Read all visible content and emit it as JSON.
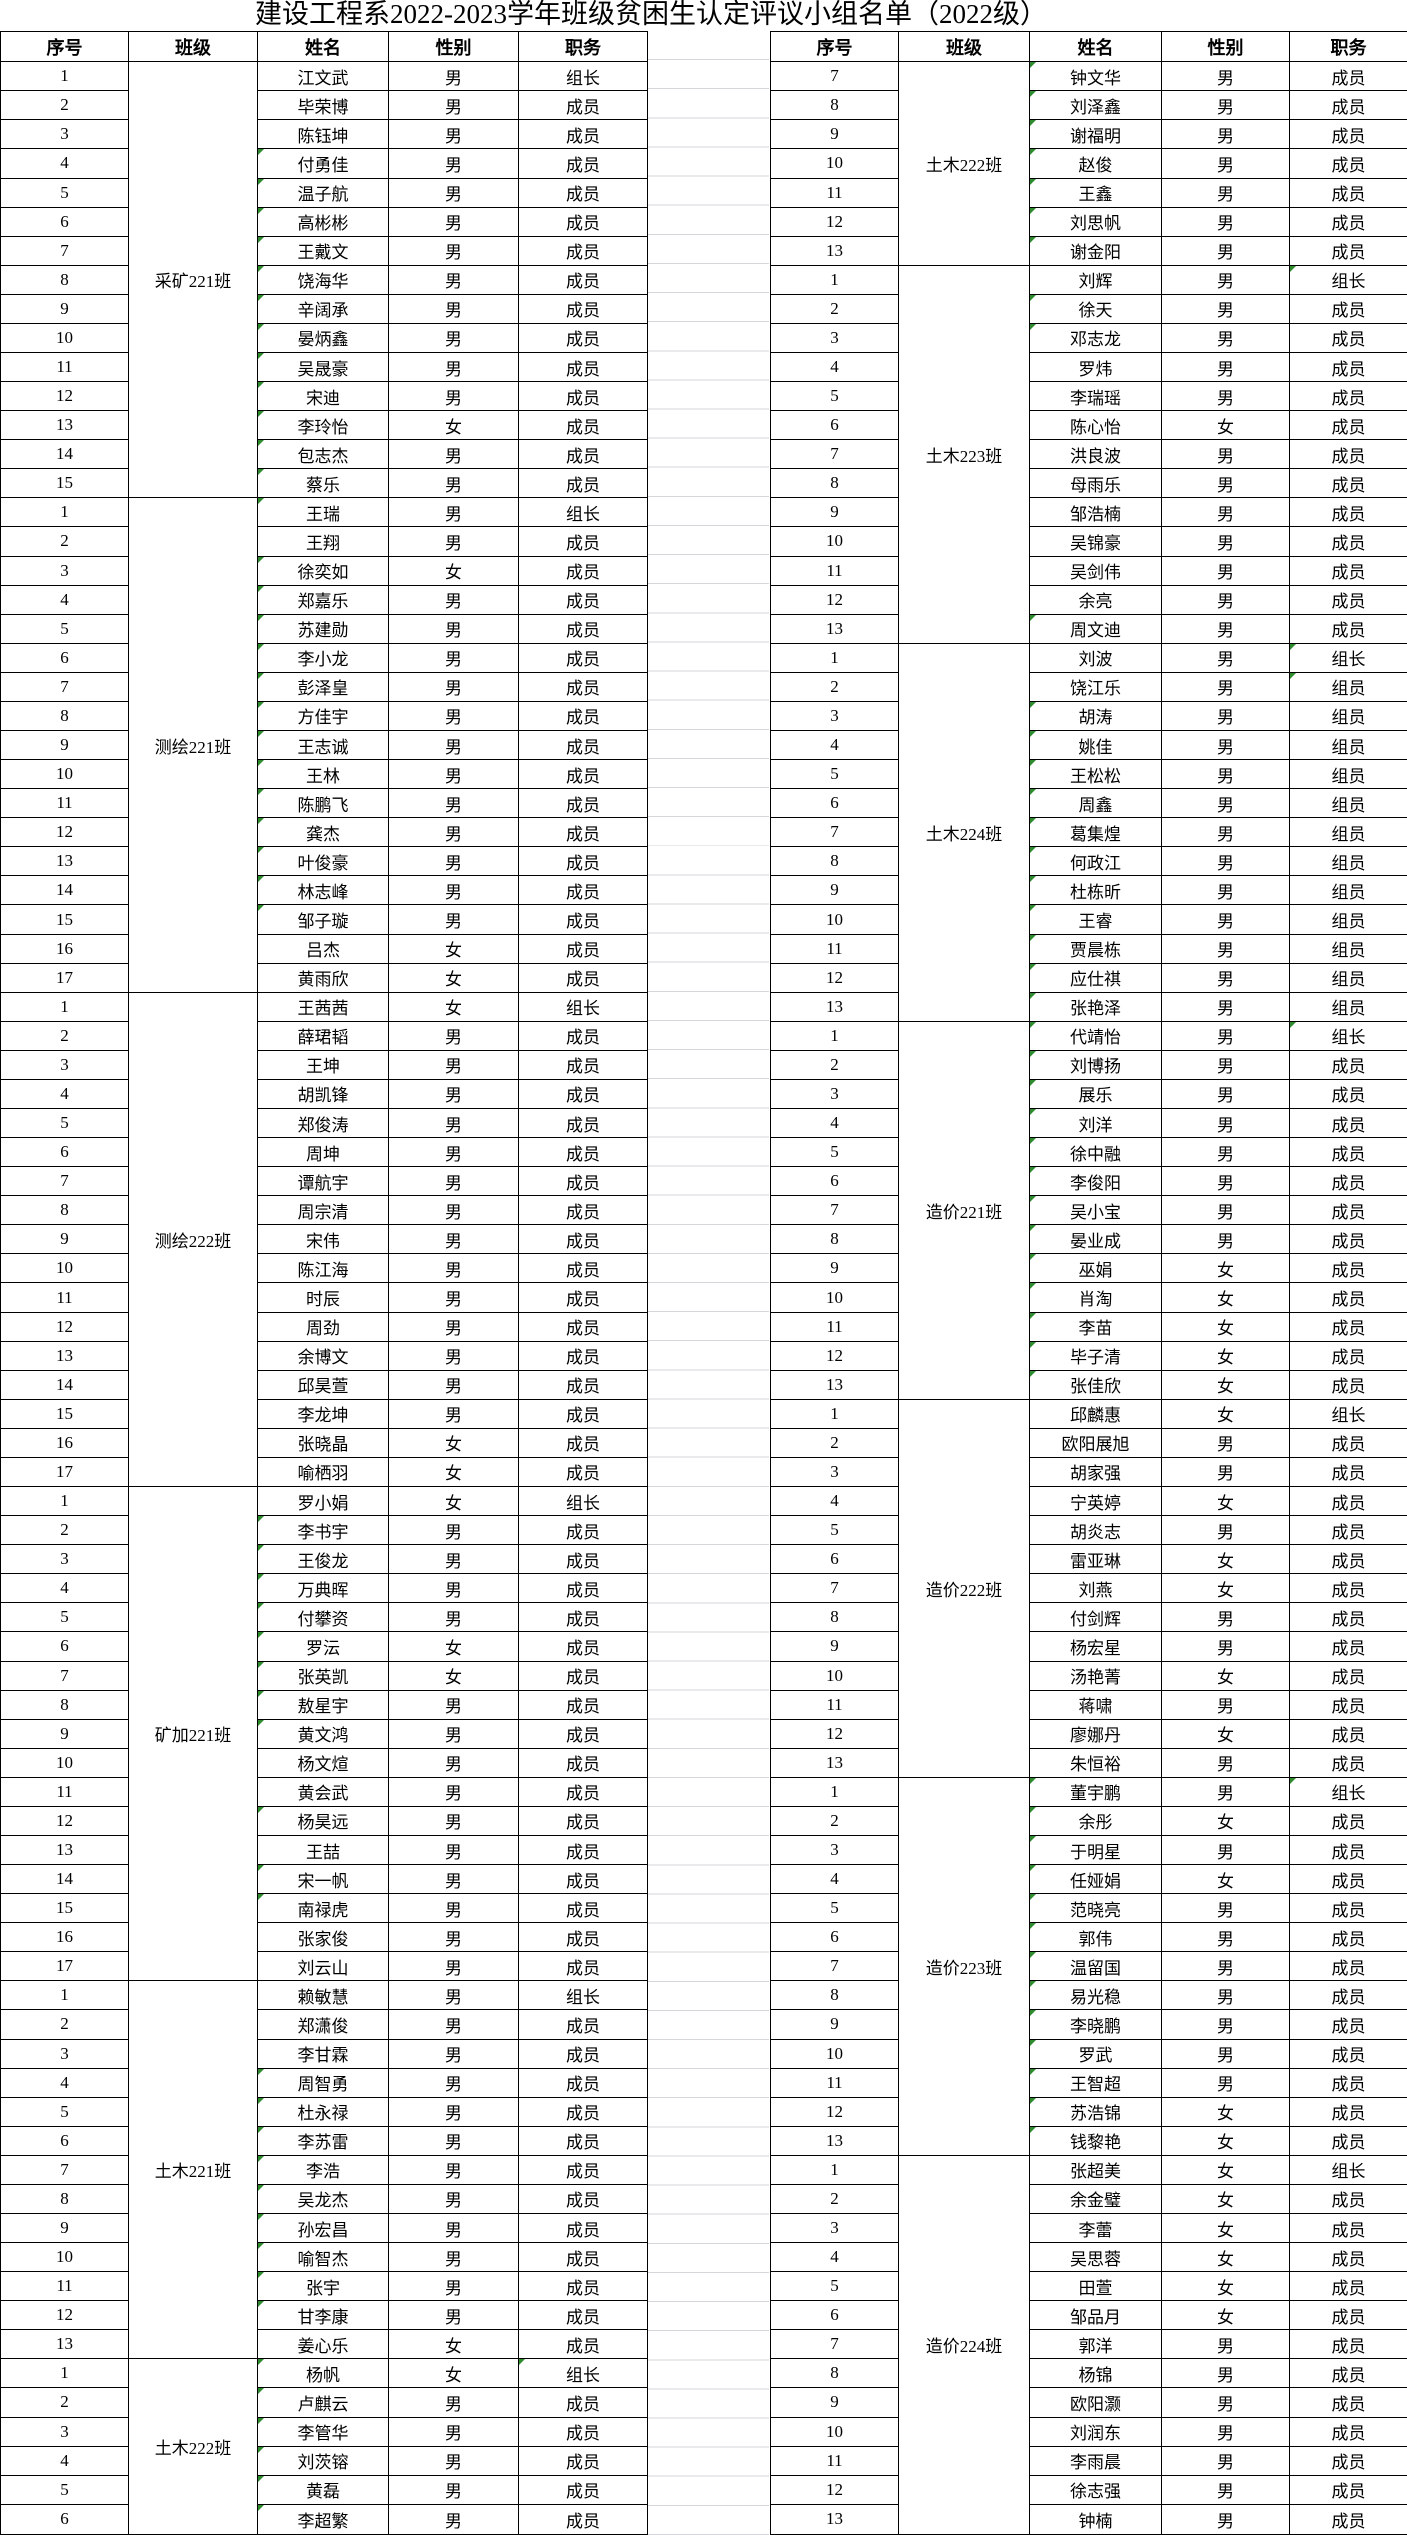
{
  "title": "建设工程系2022-2023学年班级贫困生认定评议小组名单（2022级）",
  "header": [
    "序号",
    "班级",
    "姓名",
    "性别",
    "职务"
  ],
  "colors": {
    "border": "#000000",
    "gridline": "#d5d5da",
    "flag_triangle": "#2e8b2e",
    "text": "#000000",
    "background": "#ffffff"
  },
  "tables": {
    "left": [
      {
        "cls": "采矿221班",
        "rows": [
          [
            1,
            "江文武",
            "男",
            "组长",
            0
          ],
          [
            2,
            "毕荣博",
            "男",
            "成员",
            0
          ],
          [
            3,
            "陈钰坤",
            "男",
            "成员",
            0
          ],
          [
            4,
            "付勇佳",
            "男",
            "成员",
            1
          ],
          [
            5,
            "温子航",
            "男",
            "成员",
            1
          ],
          [
            6,
            "高彬彬",
            "男",
            "成员",
            1
          ],
          [
            7,
            "王戴文",
            "男",
            "成员",
            1
          ],
          [
            8,
            "饶海华",
            "男",
            "成员",
            1
          ],
          [
            9,
            "辛阔承",
            "男",
            "成员",
            1
          ],
          [
            10,
            "晏炳鑫",
            "男",
            "成员",
            1
          ],
          [
            11,
            "吴晟豪",
            "男",
            "成员",
            1
          ],
          [
            12,
            "宋迪",
            "男",
            "成员",
            1
          ],
          [
            13,
            "李玲怡",
            "女",
            "成员",
            1
          ],
          [
            14,
            "包志杰",
            "男",
            "成员",
            1
          ],
          [
            15,
            "蔡乐",
            "男",
            "成员",
            1
          ]
        ]
      },
      {
        "cls": "测绘221班",
        "rows": [
          [
            1,
            "王瑞",
            "男",
            "组长",
            1
          ],
          [
            2,
            "王翔",
            "男",
            "成员",
            0
          ],
          [
            3,
            "徐奕如",
            "女",
            "成员",
            1
          ],
          [
            4,
            "郑嘉乐",
            "男",
            "成员",
            1
          ],
          [
            5,
            "苏建勋",
            "男",
            "成员",
            1
          ],
          [
            6,
            "李小龙",
            "男",
            "成员",
            1
          ],
          [
            7,
            "彭泽皇",
            "男",
            "成员",
            1
          ],
          [
            8,
            "方佳宇",
            "男",
            "成员",
            1
          ],
          [
            9,
            "王志诚",
            "男",
            "成员",
            1
          ],
          [
            10,
            "王林",
            "男",
            "成员",
            1
          ],
          [
            11,
            "陈鹏飞",
            "男",
            "成员",
            1
          ],
          [
            12,
            "龚杰",
            "男",
            "成员",
            1
          ],
          [
            13,
            "叶俊豪",
            "男",
            "成员",
            1
          ],
          [
            14,
            "林志峰",
            "男",
            "成员",
            1
          ],
          [
            15,
            "邹子璇",
            "男",
            "成员",
            1
          ],
          [
            16,
            "吕杰",
            "女",
            "成员",
            0
          ],
          [
            17,
            "黄雨欣",
            "女",
            "成员",
            0
          ]
        ]
      },
      {
        "cls": "测绘222班",
        "rows": [
          [
            1,
            "王茜茜",
            "女",
            "组长",
            0
          ],
          [
            2,
            "薛珺韬",
            "男",
            "成员",
            0
          ],
          [
            3,
            "王坤",
            "男",
            "成员",
            0
          ],
          [
            4,
            "胡凯锋",
            "男",
            "成员",
            0
          ],
          [
            5,
            "郑俊涛",
            "男",
            "成员",
            0
          ],
          [
            6,
            "周坤",
            "男",
            "成员",
            0
          ],
          [
            7,
            "谭航宇",
            "男",
            "成员",
            0
          ],
          [
            8,
            "周宗清",
            "男",
            "成员",
            0
          ],
          [
            9,
            "宋伟",
            "男",
            "成员",
            0
          ],
          [
            10,
            "陈江海",
            "男",
            "成员",
            0
          ],
          [
            11,
            "时辰",
            "男",
            "成员",
            0
          ],
          [
            12,
            "周劲",
            "男",
            "成员",
            0
          ],
          [
            13,
            "余博文",
            "男",
            "成员",
            0
          ],
          [
            14,
            "邱昊萱",
            "男",
            "成员",
            0
          ],
          [
            15,
            "李龙坤",
            "男",
            "成员",
            0
          ],
          [
            16,
            "张晓晶",
            "女",
            "成员",
            0
          ],
          [
            17,
            "喻栖羽",
            "女",
            "成员",
            0
          ]
        ]
      },
      {
        "cls": "矿加221班",
        "rows": [
          [
            1,
            "罗小娟",
            "女",
            "组长",
            0
          ],
          [
            2,
            "李书宇",
            "男",
            "成员",
            1
          ],
          [
            3,
            "王俊龙",
            "男",
            "成员",
            1
          ],
          [
            4,
            "万典晖",
            "男",
            "成员",
            1
          ],
          [
            5,
            "付攀资",
            "男",
            "成员",
            1
          ],
          [
            6,
            "罗沄",
            "女",
            "成员",
            1
          ],
          [
            7,
            "张英凯",
            "女",
            "成员",
            1
          ],
          [
            8,
            "敖星宇",
            "男",
            "成员",
            1
          ],
          [
            9,
            "黄文鸿",
            "男",
            "成员",
            1
          ],
          [
            10,
            "杨文煊",
            "男",
            "成员",
            0
          ],
          [
            11,
            "黄会武",
            "男",
            "成员",
            0
          ],
          [
            12,
            "杨昊远",
            "男",
            "成员",
            1
          ],
          [
            13,
            "王喆",
            "男",
            "成员",
            0
          ],
          [
            14,
            "宋一帆",
            "男",
            "成员",
            1
          ],
          [
            15,
            "南禄虎",
            "男",
            "成员",
            1
          ],
          [
            16,
            "张家俊",
            "男",
            "成员",
            0
          ],
          [
            17,
            "刘云山",
            "男",
            "成员",
            0
          ]
        ]
      },
      {
        "cls": "土木221班",
        "rows": [
          [
            1,
            "赖敏慧",
            "男",
            "组长",
            0
          ],
          [
            2,
            "郑潇俊",
            "男",
            "成员",
            0
          ],
          [
            3,
            "李甘霖",
            "男",
            "成员",
            0
          ],
          [
            4,
            "周智勇",
            "男",
            "成员",
            1
          ],
          [
            5,
            "杜永禄",
            "男",
            "成员",
            1
          ],
          [
            6,
            "李苏雷",
            "男",
            "成员",
            1
          ],
          [
            7,
            "李浩",
            "男",
            "成员",
            1
          ],
          [
            8,
            "吴龙杰",
            "男",
            "成员",
            1
          ],
          [
            9,
            "孙宏昌",
            "男",
            "成员",
            1
          ],
          [
            10,
            "喻智杰",
            "男",
            "成员",
            1
          ],
          [
            11,
            "张宇",
            "男",
            "成员",
            1
          ],
          [
            12,
            "甘李康",
            "男",
            "成员",
            1
          ],
          [
            13,
            "姜心乐",
            "女",
            "成员",
            0
          ]
        ]
      },
      {
        "cls": "土木222班",
        "rows": [
          [
            1,
            "杨帆",
            "女",
            "组长",
            1,
            1
          ],
          [
            2,
            "卢麒云",
            "男",
            "成员",
            1
          ],
          [
            3,
            "李管华",
            "男",
            "成员",
            1
          ],
          [
            4,
            "刘茨镕",
            "男",
            "成员",
            1
          ],
          [
            5,
            "黄磊",
            "男",
            "成员",
            1
          ],
          [
            6,
            "李超繁",
            "男",
            "成员",
            1
          ]
        ]
      }
    ],
    "right": [
      {
        "cls": "土木222班",
        "rows": [
          [
            7,
            "钟文华",
            "男",
            "成员",
            1
          ],
          [
            8,
            "刘泽鑫",
            "男",
            "成员",
            1
          ],
          [
            9,
            "谢福明",
            "男",
            "成员",
            1
          ],
          [
            10,
            "赵俊",
            "男",
            "成员",
            1
          ],
          [
            11,
            "王鑫",
            "男",
            "成员",
            1
          ],
          [
            12,
            "刘思帆",
            "男",
            "成员",
            1
          ],
          [
            13,
            "谢金阳",
            "男",
            "成员",
            1
          ]
        ]
      },
      {
        "cls": "土木223班",
        "rows": [
          [
            1,
            "刘辉",
            "男",
            "组长",
            0,
            1
          ],
          [
            2,
            "徐天",
            "男",
            "成员",
            1
          ],
          [
            3,
            "邓志龙",
            "男",
            "成员",
            1
          ],
          [
            4,
            "罗炜",
            "男",
            "成员",
            0
          ],
          [
            5,
            "李瑞瑶",
            "男",
            "成员",
            0
          ],
          [
            6,
            "陈心怡",
            "女",
            "成员",
            0
          ],
          [
            7,
            "洪良波",
            "男",
            "成员",
            0
          ],
          [
            8,
            "母雨乐",
            "男",
            "成员",
            0
          ],
          [
            9,
            "邹浩楠",
            "男",
            "成员",
            0
          ],
          [
            10,
            "吴锦豪",
            "男",
            "成员",
            0
          ],
          [
            11,
            "吴剑伟",
            "男",
            "成员",
            0
          ],
          [
            12,
            "余亮",
            "男",
            "成员",
            0
          ],
          [
            13,
            "周文迪",
            "男",
            "成员",
            1
          ]
        ]
      },
      {
        "cls": "土木224班",
        "rows": [
          [
            1,
            "刘波",
            "男",
            "组长",
            0,
            1
          ],
          [
            2,
            "饶江乐",
            "男",
            "组员",
            0,
            1
          ],
          [
            3,
            "胡涛",
            "男",
            "组员",
            1
          ],
          [
            4,
            "姚佳",
            "男",
            "组员",
            1
          ],
          [
            5,
            "王松松",
            "男",
            "组员",
            1
          ],
          [
            6,
            "周鑫",
            "男",
            "组员",
            1
          ],
          [
            7,
            "葛集煌",
            "男",
            "组员",
            1
          ],
          [
            8,
            "何政江",
            "男",
            "组员",
            1
          ],
          [
            9,
            "杜栋昕",
            "男",
            "组员",
            1
          ],
          [
            10,
            "王睿",
            "男",
            "组员",
            1
          ],
          [
            11,
            "贾晨栋",
            "男",
            "组员",
            1
          ],
          [
            12,
            "应仕祺",
            "男",
            "组员",
            1
          ],
          [
            13,
            "张艳泽",
            "男",
            "组员",
            1
          ]
        ]
      },
      {
        "cls": "造价221班",
        "rows": [
          [
            1,
            "代靖怡",
            "男",
            "组长",
            1,
            1
          ],
          [
            2,
            "刘博扬",
            "男",
            "成员",
            1
          ],
          [
            3,
            "展乐",
            "男",
            "成员",
            1
          ],
          [
            4,
            "刘洋",
            "男",
            "成员",
            1
          ],
          [
            5,
            "徐中融",
            "男",
            "成员",
            1
          ],
          [
            6,
            "李俊阳",
            "男",
            "成员",
            1
          ],
          [
            7,
            "吴小宝",
            "男",
            "成员",
            1
          ],
          [
            8,
            "晏业成",
            "男",
            "成员",
            1
          ],
          [
            9,
            "巫娟",
            "女",
            "成员",
            1
          ],
          [
            10,
            "肖淘",
            "女",
            "成员",
            1
          ],
          [
            11,
            "李苗",
            "女",
            "成员",
            1
          ],
          [
            12,
            "毕子清",
            "女",
            "成员",
            1
          ],
          [
            13,
            "张佳欣",
            "女",
            "成员",
            1
          ]
        ]
      },
      {
        "cls": "造价222班",
        "rows": [
          [
            1,
            "邱麟惠",
            "女",
            "组长",
            0
          ],
          [
            2,
            "欧阳展旭",
            "男",
            "成员",
            0
          ],
          [
            3,
            "胡家强",
            "男",
            "成员",
            0
          ],
          [
            4,
            "宁英婷",
            "女",
            "成员",
            0
          ],
          [
            5,
            "胡炎志",
            "男",
            "成员",
            0
          ],
          [
            6,
            "雷亚琳",
            "女",
            "成员",
            0
          ],
          [
            7,
            "刘燕",
            "女",
            "成员",
            0
          ],
          [
            8,
            "付剑辉",
            "男",
            "成员",
            0
          ],
          [
            9,
            "杨宏星",
            "男",
            "成员",
            0
          ],
          [
            10,
            "汤艳菁",
            "女",
            "成员",
            0
          ],
          [
            11,
            "蒋啸",
            "男",
            "成员",
            0
          ],
          [
            12,
            "廖娜丹",
            "女",
            "成员",
            0
          ],
          [
            13,
            "朱恒裕",
            "男",
            "成员",
            0
          ]
        ]
      },
      {
        "cls": "造价223班",
        "rows": [
          [
            1,
            "董宇鹏",
            "男",
            "组长",
            1,
            1
          ],
          [
            2,
            "余彤",
            "女",
            "成员",
            1
          ],
          [
            3,
            "于明星",
            "男",
            "成员",
            1
          ],
          [
            4,
            "任娅娟",
            "女",
            "成员",
            1
          ],
          [
            5,
            "范晓亮",
            "男",
            "成员",
            1
          ],
          [
            6,
            "郭伟",
            "男",
            "成员",
            1
          ],
          [
            7,
            "温留国",
            "男",
            "成员",
            1
          ],
          [
            8,
            "易光稳",
            "男",
            "成员",
            1
          ],
          [
            9,
            "李晓鹏",
            "男",
            "成员",
            1
          ],
          [
            10,
            "罗武",
            "男",
            "成员",
            1
          ],
          [
            11,
            "王智超",
            "男",
            "成员",
            1
          ],
          [
            12,
            "苏浩锦",
            "女",
            "成员",
            1
          ],
          [
            13,
            "钱黎艳",
            "女",
            "成员",
            1
          ]
        ]
      },
      {
        "cls": "造价224班",
        "rows": [
          [
            1,
            "张超美",
            "女",
            "组长",
            0
          ],
          [
            2,
            "余金璧",
            "女",
            "成员",
            0
          ],
          [
            3,
            "李蕾",
            "女",
            "成员",
            0
          ],
          [
            4,
            "吴思蓉",
            "女",
            "成员",
            0
          ],
          [
            5,
            "田萱",
            "女",
            "成员",
            0
          ],
          [
            6,
            "邹品月",
            "女",
            "成员",
            0
          ],
          [
            7,
            "郭洋",
            "男",
            "成员",
            0
          ],
          [
            8,
            "杨锦",
            "男",
            "成员",
            0
          ],
          [
            9,
            "欧阳灏",
            "男",
            "成员",
            0
          ],
          [
            10,
            "刘润东",
            "男",
            "成员",
            0
          ],
          [
            11,
            "李雨晨",
            "男",
            "成员",
            0
          ],
          [
            12,
            "徐志强",
            "男",
            "成员",
            0
          ],
          [
            13,
            "钟楠",
            "男",
            "成员",
            0
          ]
        ]
      }
    ]
  }
}
